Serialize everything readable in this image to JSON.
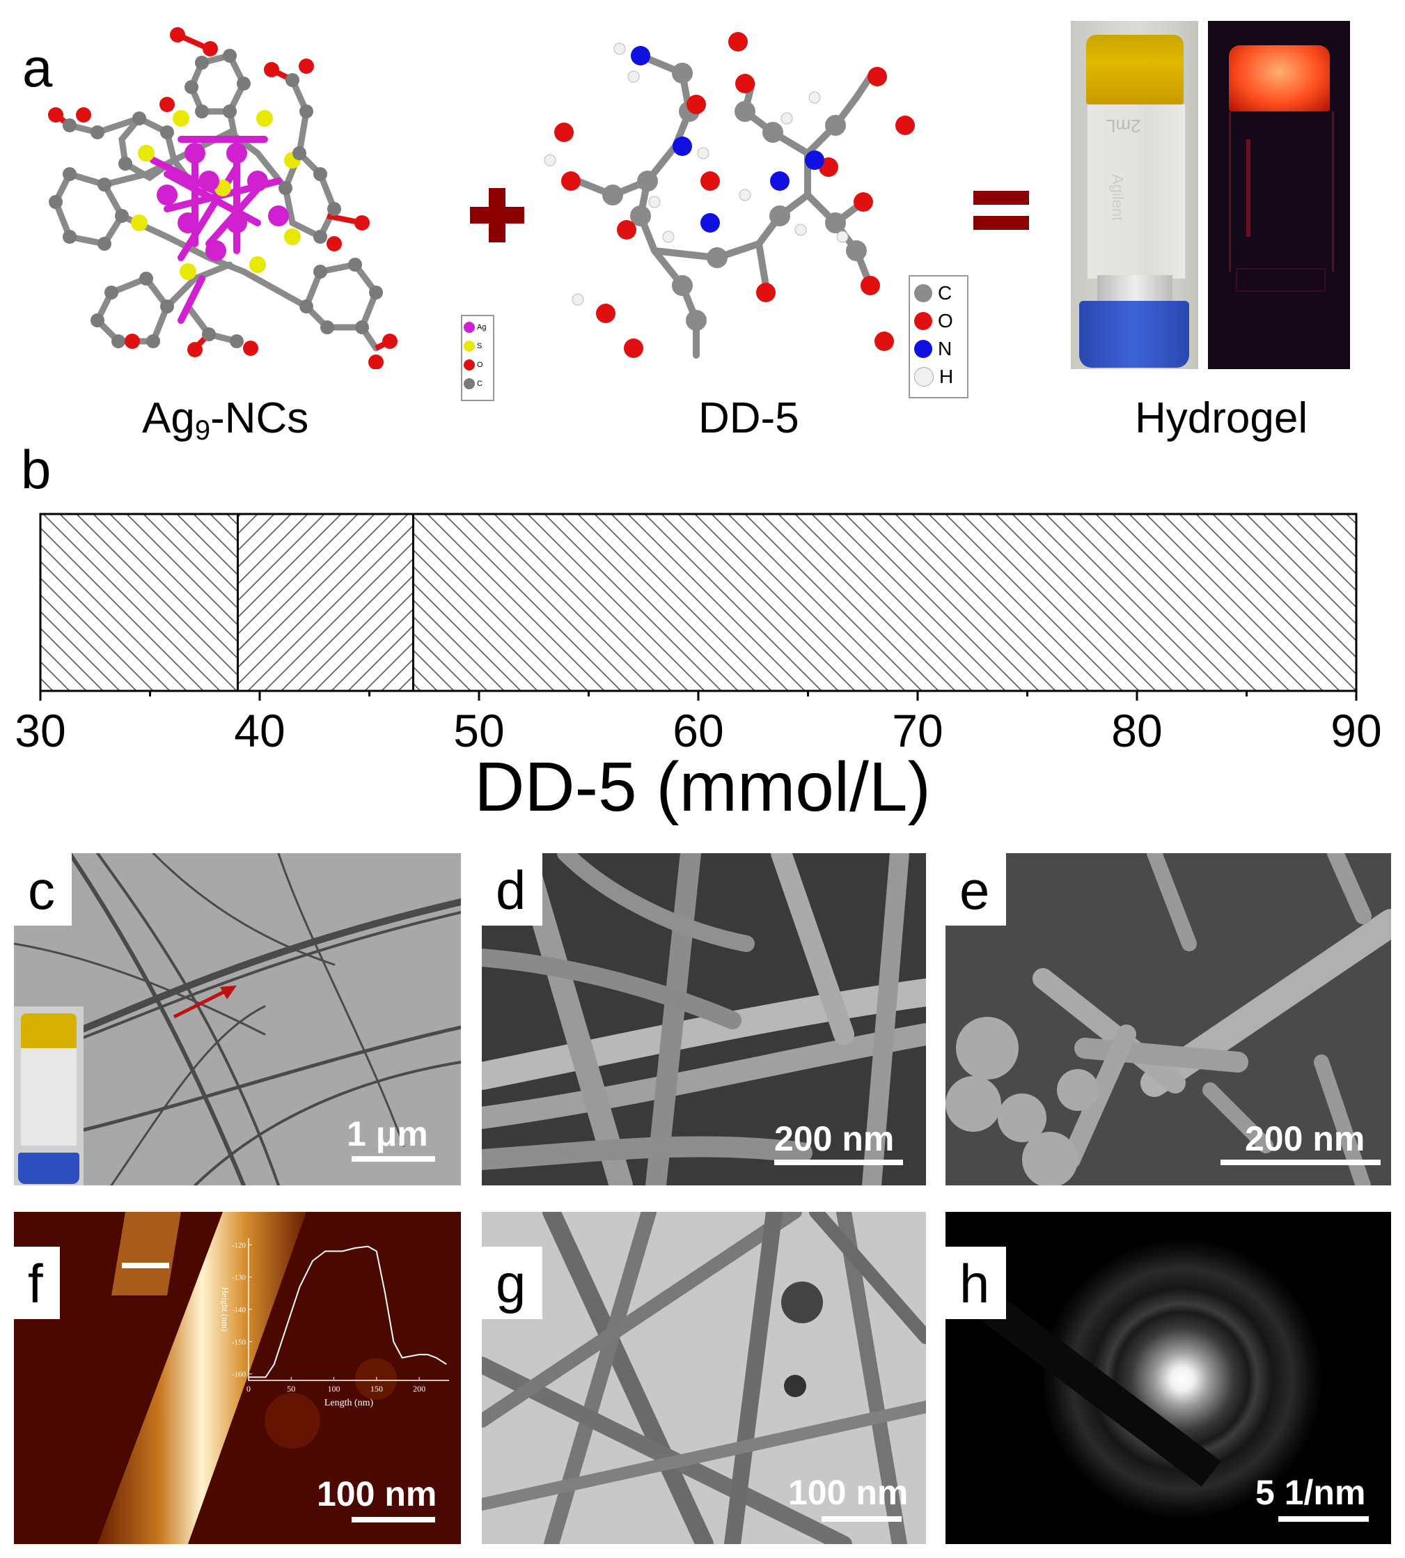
{
  "panel_a": {
    "label": "a",
    "ag_caption_main": "Ag",
    "ag_caption_sub": "9",
    "ag_caption_rest": "-NCs",
    "dd5_caption": "DD-5",
    "hydrogel_caption": "Hydrogel",
    "small_legend": [
      "Ag",
      "S",
      "O",
      "C"
    ],
    "big_legend": [
      {
        "symbol": "C",
        "color": "#8c8c8c"
      },
      {
        "symbol": "O",
        "color": "#e01010"
      },
      {
        "symbol": "N",
        "color": "#1010e0"
      },
      {
        "symbol": "H",
        "color": "#f0f0f0"
      }
    ],
    "vial_label": "Agilent",
    "vial_volume": "2mL"
  },
  "panel_b": {
    "label": "b",
    "xlabel": "DD-5 (mmol/L)",
    "tick_labels": [
      "30",
      "40",
      "50",
      "60",
      "70",
      "80",
      "90"
    ],
    "chart_data": {
      "type": "bar",
      "xlim": [
        30,
        90
      ],
      "xlabel": "DD-5 (mmol/L)",
      "regions": [
        {
          "from": 30,
          "to": 39,
          "hatch": "backslash"
        },
        {
          "from": 39,
          "to": 47,
          "hatch": "slash"
        },
        {
          "from": 47,
          "to": 90,
          "hatch": "backslash"
        }
      ],
      "major_ticks": [
        30,
        40,
        50,
        60,
        70,
        80,
        90
      ],
      "minor_ticks": [
        35,
        45,
        55,
        65,
        75,
        85
      ]
    }
  },
  "panel_c": {
    "label": "c",
    "scale": "1 μm"
  },
  "panel_d": {
    "label": "d",
    "scale": "200 nm"
  },
  "panel_e": {
    "label": "e",
    "scale": "200 nm"
  },
  "panel_f": {
    "label": "f",
    "scale": "100 nm",
    "inset": {
      "xlabel": "Length (nm)",
      "ylabel": "Height (nm)",
      "xticks": [
        "0",
        "50",
        "100",
        "150",
        "200"
      ],
      "yticks": [
        "-120",
        "-130",
        "-140",
        "-150",
        "-160"
      ],
      "profile_x": [
        0,
        20,
        30,
        45,
        60,
        75,
        90,
        110,
        125,
        140,
        150,
        160,
        170,
        180,
        200,
        210,
        220,
        232
      ],
      "profile_y": [
        -161,
        -161,
        -157,
        -145,
        -133,
        -125,
        -122,
        -122,
        -121,
        -120.5,
        -122,
        -135,
        -150,
        -155,
        -154,
        -154,
        -155,
        -157
      ]
    }
  },
  "panel_g": {
    "label": "g",
    "scale": "100 nm"
  },
  "panel_h": {
    "label": "h",
    "scale": "5 1/nm"
  }
}
